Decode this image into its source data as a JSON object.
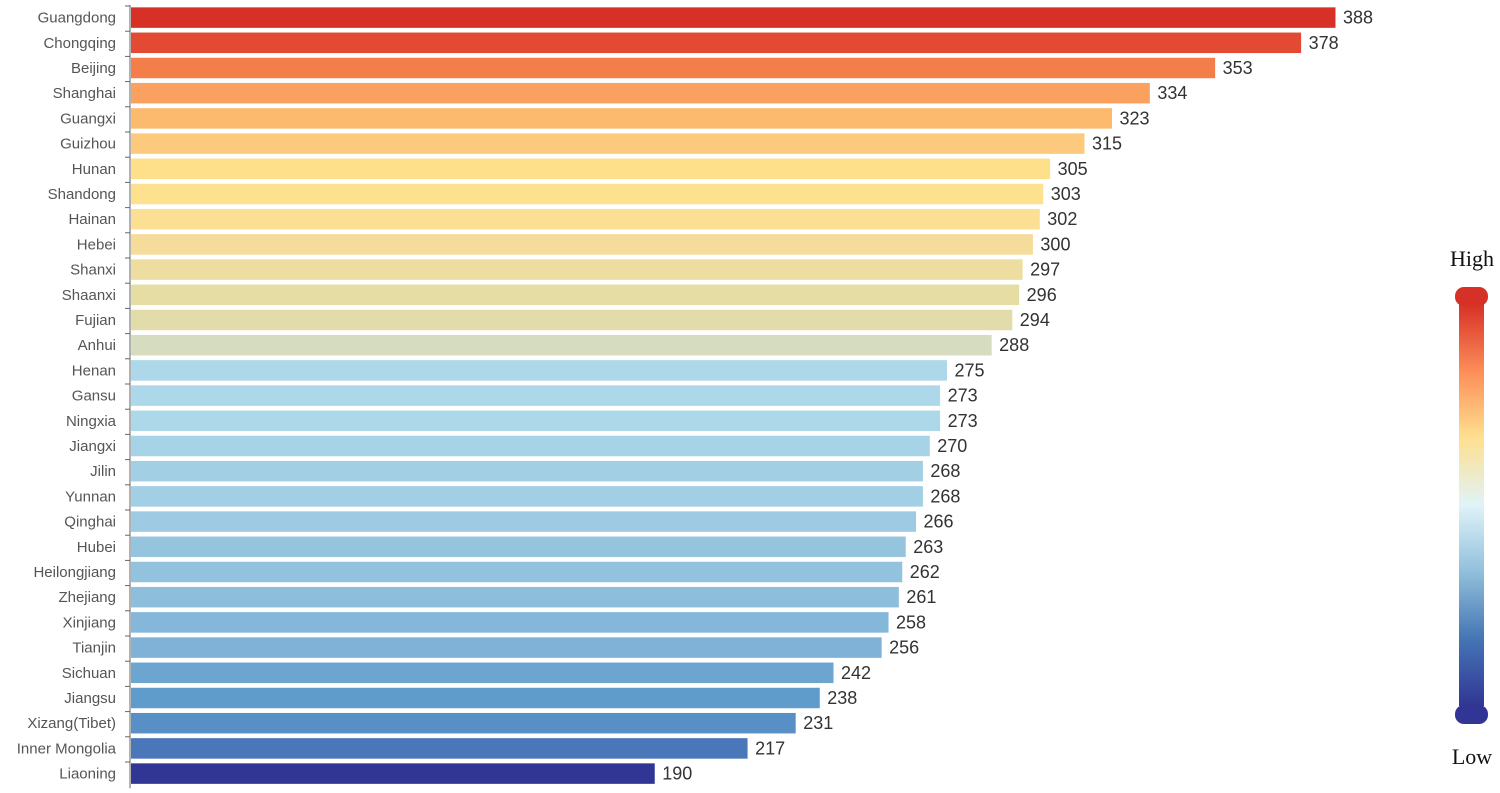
{
  "chart_data": {
    "type": "bar",
    "orientation": "horizontal",
    "categories": [
      "Guangdong",
      "Chongqing",
      "Beijing",
      "Shanghai",
      "Guangxi",
      "Guizhou",
      "Hunan",
      "Shandong",
      "Hainan",
      "Hebei",
      "Shanxi",
      "Shaanxi",
      "Fujian",
      "Anhui",
      "Henan",
      "Gansu",
      "Ningxia",
      "Jiangxi",
      "Jilin",
      "Yunnan",
      "Qinghai",
      "Hubei",
      "Heilongjiang",
      "Zhejiang",
      "Xinjiang",
      "Tianjin",
      "Sichuan",
      "Jiangsu",
      "Xizang(Tibet)",
      "Inner Mongolia",
      "Liaoning"
    ],
    "values": [
      388,
      378,
      353,
      334,
      323,
      315,
      305,
      303,
      302,
      300,
      297,
      296,
      294,
      288,
      275,
      273,
      273,
      270,
      268,
      268,
      266,
      263,
      262,
      261,
      258,
      256,
      242,
      238,
      231,
      217,
      190
    ],
    "value_labels": [
      "388",
      "378",
      "353",
      "334",
      "323",
      "315",
      "305",
      "303",
      "302",
      "300",
      "297",
      "296",
      "294",
      "288",
      "275",
      "273",
      "273",
      "270",
      "268",
      "268",
      "266",
      "263",
      "262",
      "261",
      "258",
      "256",
      "242",
      "238",
      "231",
      "217",
      "190"
    ],
    "colors": [
      "#d73027",
      "#e34a33",
      "#f47e4a",
      "#faa15f",
      "#fcba6f",
      "#fdc97c",
      "#fee08b",
      "#fde18f",
      "#fbdf93",
      "#f6dc9a",
      "#eddda0",
      "#e6dda5",
      "#e1dcaa",
      "#d5dcc0",
      "#acd8e9",
      "#acd8e9",
      "#acd8e9",
      "#a6d3e6",
      "#a3cfe5",
      "#a3cfe5",
      "#9ecbe3",
      "#95c4df",
      "#92c2de",
      "#8dbedc",
      "#84b7d9",
      "#7fb2d6",
      "#6ba5d0",
      "#5f9ccb",
      "#5890c6",
      "#4a77b9",
      "#313695"
    ],
    "legend": {
      "high_label": "High",
      "low_label": "Low",
      "gradient": [
        "#d73027",
        "#fc8d59",
        "#fee090",
        "#e0f3f8",
        "#91bfdb",
        "#4575b4",
        "#313695"
      ]
    }
  }
}
